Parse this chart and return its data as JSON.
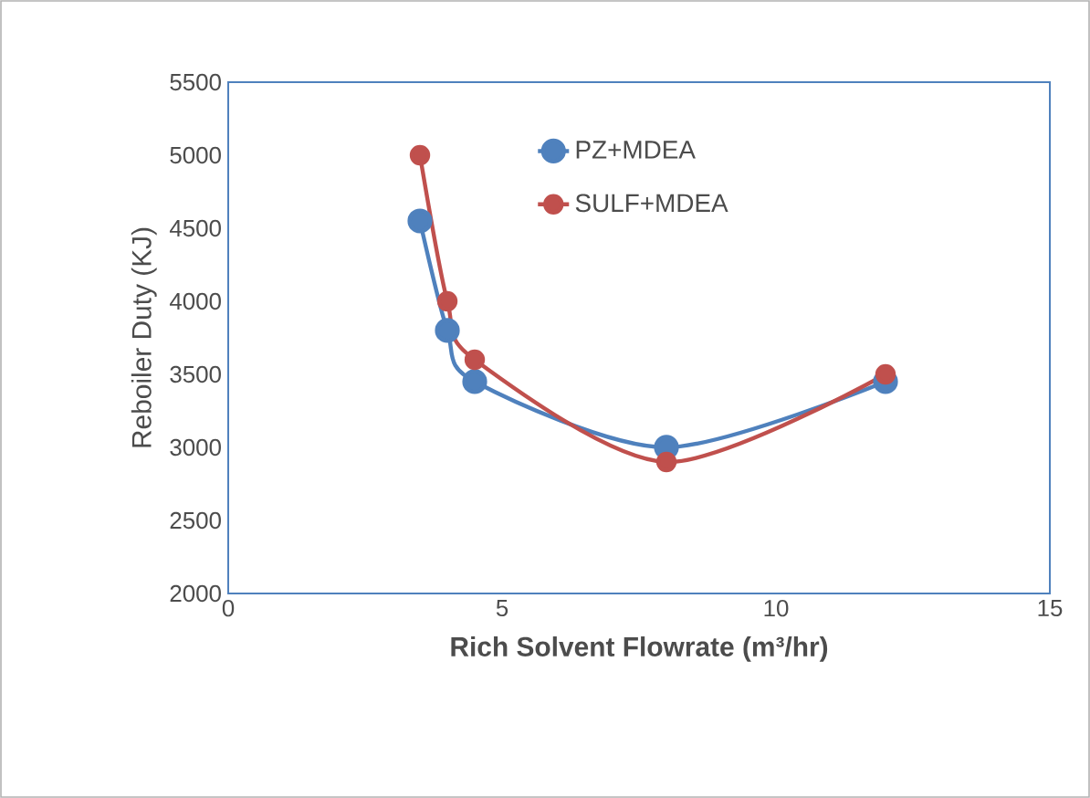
{
  "chart_data": {
    "type": "line",
    "xlabel": "Rich Solvent Flowrate (m³/hr)",
    "ylabel": "Reboiler Duty (KJ)",
    "xlim": [
      0,
      15
    ],
    "xticks": [
      0,
      5,
      10,
      15
    ],
    "ylim": [
      2000,
      5500
    ],
    "yticks": [
      2000,
      2500,
      3000,
      3500,
      4000,
      4500,
      5000,
      5500
    ],
    "grid": false,
    "legend": "top right",
    "marker": "circle",
    "line_style": "solid",
    "x": [
      3.5,
      4,
      4.5,
      8,
      12
    ],
    "series": [
      {
        "name": "PZ+MDEA",
        "color": "#4f81bd",
        "values": [
          4550,
          3800,
          3450,
          3000,
          3450
        ]
      },
      {
        "name": "SULF+MDEA",
        "color": "#c0504d",
        "values": [
          5000,
          4000,
          3600,
          2900,
          3500
        ]
      }
    ]
  }
}
